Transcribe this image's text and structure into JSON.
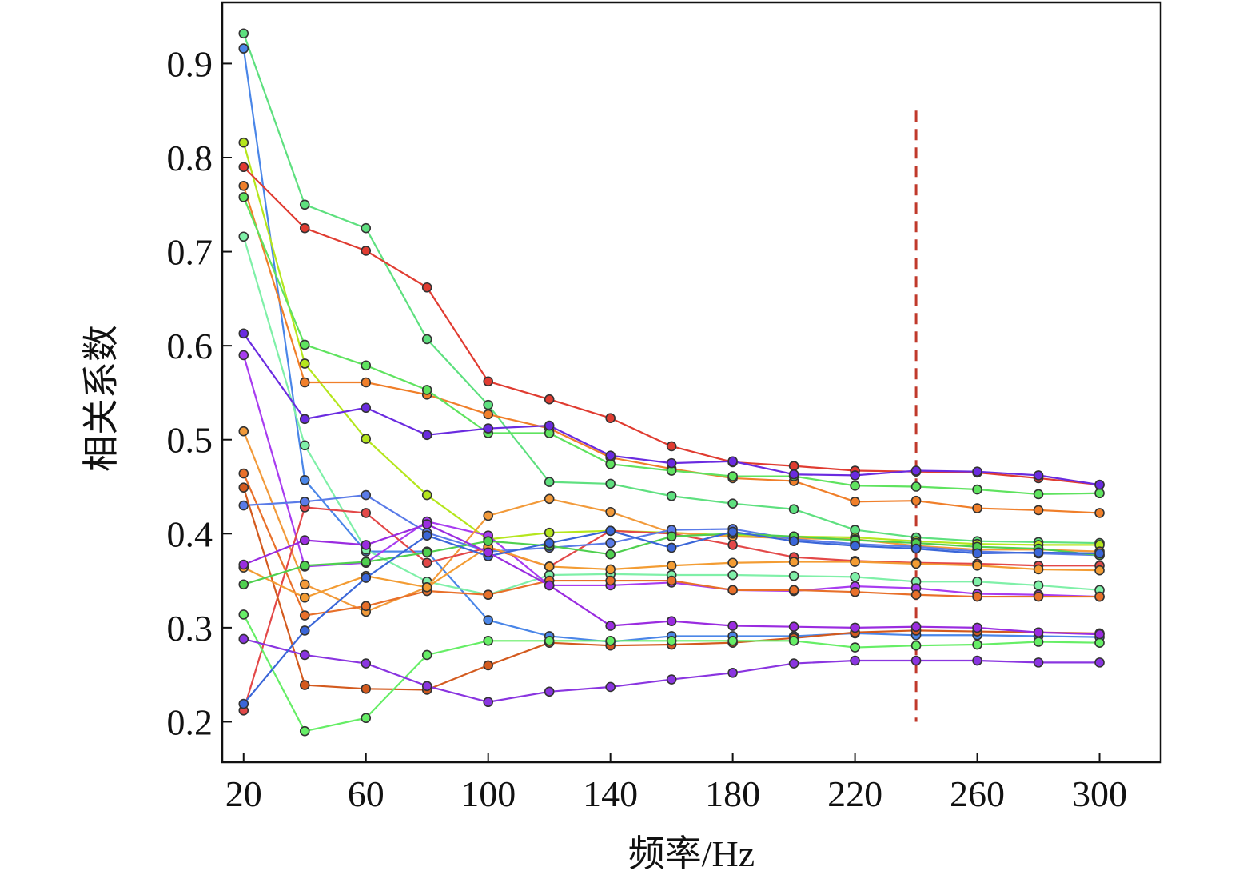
{
  "chart_data": {
    "type": "line",
    "xlabel": "频率/Hz",
    "ylabel": "相关系数",
    "xlim": [
      13,
      320
    ],
    "ylim": [
      0.157,
      0.965
    ],
    "x_ticks": [
      20,
      60,
      100,
      140,
      180,
      220,
      260,
      300
    ],
    "x_tick_labels": [
      "20",
      "60",
      "100",
      "140",
      "180",
      "220",
      "260",
      "300"
    ],
    "y_ticks": [
      0.2,
      0.3,
      0.4,
      0.5,
      0.6,
      0.7,
      0.8,
      0.9
    ],
    "y_tick_labels": [
      "0.2",
      "0.3",
      "0.4",
      "0.5",
      "0.6",
      "0.7",
      "0.8",
      "0.9"
    ],
    "grid": false,
    "legend": false,
    "reference_line": {
      "x": 240,
      "y_range": [
        0.2,
        0.85
      ],
      "style": "dashed",
      "color": "#c0392b"
    },
    "x": [
      20,
      40,
      60,
      80,
      100,
      120,
      140,
      160,
      180,
      200,
      220,
      240,
      260,
      280,
      300
    ],
    "series": [
      {
        "color": "#5ee07f",
        "values": [
          0.932,
          0.75,
          0.725,
          0.607,
          0.537,
          0.455,
          0.453,
          0.44,
          0.432,
          0.426,
          0.404,
          0.396,
          0.392,
          0.391,
          0.39
        ]
      },
      {
        "color": "#4a86e8",
        "values": [
          0.916,
          0.457,
          0.381,
          0.381,
          0.308,
          0.291,
          0.285,
          0.291,
          0.291,
          0.291,
          0.294,
          0.292,
          0.292,
          0.291,
          0.29
        ]
      },
      {
        "color": "#b5e61d",
        "values": [
          0.816,
          0.581,
          0.501,
          0.441,
          0.394,
          0.401,
          0.403,
          0.401,
          0.398,
          0.397,
          0.396,
          0.392,
          0.389,
          0.388,
          0.388
        ]
      },
      {
        "color": "#e03c31",
        "values": [
          0.79,
          0.725,
          0.701,
          0.662,
          0.562,
          0.543,
          0.523,
          0.493,
          0.476,
          0.472,
          0.467,
          0.466,
          0.465,
          0.459,
          0.452
        ]
      },
      {
        "color": "#f07f2a",
        "values": [
          0.77,
          0.561,
          0.561,
          0.548,
          0.527,
          0.512,
          0.481,
          0.469,
          0.459,
          0.456,
          0.434,
          0.435,
          0.427,
          0.425,
          0.422
        ]
      },
      {
        "color": "#5fe35f",
        "values": [
          0.758,
          0.601,
          0.579,
          0.553,
          0.507,
          0.507,
          0.474,
          0.467,
          0.461,
          0.461,
          0.451,
          0.45,
          0.447,
          0.442,
          0.443
        ]
      },
      {
        "color": "#7ff0a8",
        "values": [
          0.716,
          0.494,
          0.383,
          0.349,
          0.335,
          0.356,
          0.357,
          0.356,
          0.356,
          0.355,
          0.354,
          0.349,
          0.349,
          0.345,
          0.34
        ]
      },
      {
        "color": "#6a2be0",
        "values": [
          0.613,
          0.522,
          0.534,
          0.505,
          0.512,
          0.515,
          0.483,
          0.475,
          0.477,
          0.463,
          0.462,
          0.467,
          0.466,
          0.462,
          0.452
        ]
      },
      {
        "color": "#a83cf0",
        "values": [
          0.59,
          0.365,
          0.369,
          0.413,
          0.398,
          0.345,
          0.345,
          0.348,
          0.34,
          0.339,
          0.344,
          0.342,
          0.336,
          0.335,
          0.333
        ]
      },
      {
        "color": "#f29a3a",
        "values": [
          0.509,
          0.346,
          0.317,
          0.343,
          0.419,
          0.437,
          0.423,
          0.401,
          0.397,
          0.395,
          0.394,
          0.387,
          0.383,
          0.383,
          0.381
        ]
      },
      {
        "color": "#e8702a",
        "values": [
          0.464,
          0.313,
          0.323,
          0.339,
          0.335,
          0.35,
          0.35,
          0.35,
          0.34,
          0.34,
          0.338,
          0.335,
          0.333,
          0.333,
          0.333
        ]
      },
      {
        "color": "#e34848",
        "values": [
          0.212,
          0.428,
          0.422,
          0.369,
          0.385,
          0.365,
          0.403,
          0.4,
          0.388,
          0.375,
          0.371,
          0.369,
          0.368,
          0.366,
          0.366
        ]
      },
      {
        "color": "#5a7be8",
        "values": [
          0.43,
          0.434,
          0.441,
          0.401,
          0.381,
          0.385,
          0.39,
          0.404,
          0.405,
          0.394,
          0.389,
          0.386,
          0.381,
          0.379,
          0.377
        ]
      },
      {
        "color": "#d35a1e",
        "values": [
          0.449,
          0.239,
          0.235,
          0.234,
          0.26,
          0.284,
          0.281,
          0.282,
          0.284,
          0.289,
          0.295,
          0.297,
          0.296,
          0.295,
          0.294
        ]
      },
      {
        "color": "#f39c33",
        "values": [
          0.364,
          0.332,
          0.355,
          0.343,
          0.386,
          0.365,
          0.362,
          0.366,
          0.369,
          0.37,
          0.37,
          0.368,
          0.366,
          0.362,
          0.361
        ]
      },
      {
        "color": "#4fd04f",
        "values": [
          0.346,
          0.366,
          0.37,
          0.38,
          0.392,
          0.387,
          0.378,
          0.397,
          0.4,
          0.397,
          0.393,
          0.39,
          0.386,
          0.384,
          0.377
        ]
      },
      {
        "color": "#66ee66",
        "values": [
          0.314,
          0.19,
          0.204,
          0.271,
          0.286,
          0.286,
          0.286,
          0.286,
          0.286,
          0.286,
          0.279,
          0.281,
          0.282,
          0.285,
          0.284
        ]
      },
      {
        "color": "#8a35e0",
        "values": [
          0.288,
          0.271,
          0.262,
          0.238,
          0.221,
          0.232,
          0.237,
          0.245,
          0.252,
          0.262,
          0.265,
          0.265,
          0.265,
          0.263,
          0.263
        ]
      },
      {
        "color": "#3a66d8",
        "values": [
          0.219,
          0.297,
          0.353,
          0.398,
          0.376,
          0.39,
          0.403,
          0.385,
          0.402,
          0.392,
          0.387,
          0.384,
          0.379,
          0.38,
          0.379
        ]
      },
      {
        "color": "#9a2ce0",
        "values": [
          0.367,
          0.393,
          0.388,
          0.41,
          0.38,
          0.345,
          0.302,
          0.307,
          0.302,
          0.301,
          0.3,
          0.301,
          0.3,
          0.295,
          0.293
        ]
      }
    ]
  }
}
